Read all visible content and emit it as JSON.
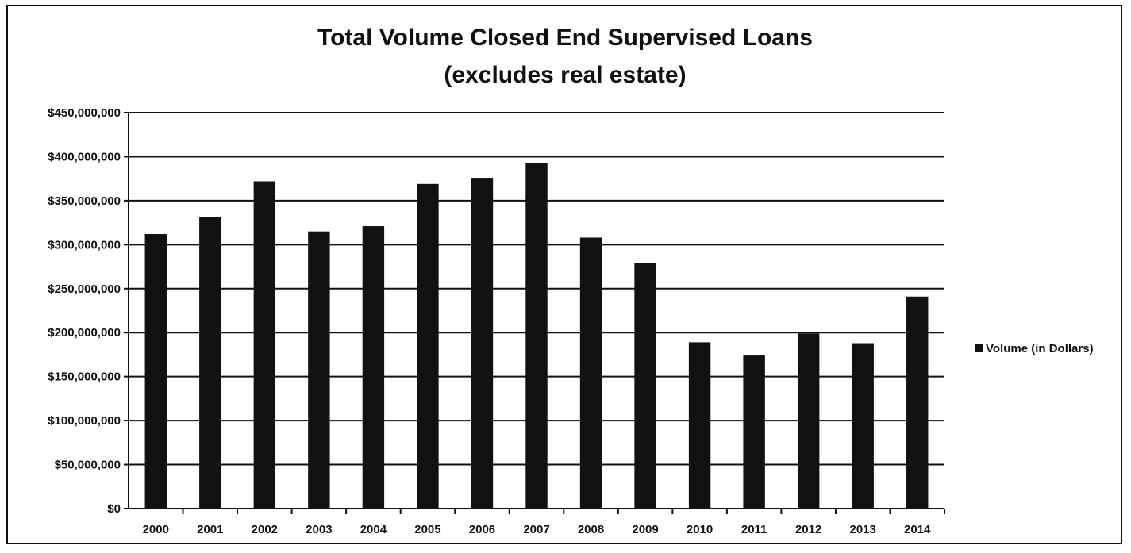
{
  "chart_data": {
    "type": "bar",
    "title": "Total Volume Closed End Supervised Loans",
    "subtitle": "(excludes real estate)",
    "xlabel": "",
    "ylabel": "",
    "categories": [
      "2000",
      "2001",
      "2002",
      "2003",
      "2004",
      "2005",
      "2006",
      "2007",
      "2008",
      "2009",
      "2010",
      "2011",
      "2012",
      "2013",
      "2014"
    ],
    "series": [
      {
        "name": "Volume (in Dollars)",
        "values": [
          312000000,
          331000000,
          372000000,
          315000000,
          321000000,
          369000000,
          376000000,
          393000000,
          308000000,
          279000000,
          189000000,
          174000000,
          199000000,
          188000000,
          241000000
        ]
      }
    ],
    "yticks": [
      "$0",
      "$50,000,000",
      "$100,000,000",
      "$150,000,000",
      "$200,000,000",
      "$250,000,000",
      "$300,000,000",
      "$350,000,000",
      "$400,000,000",
      "$450,000,000"
    ],
    "ylim": [
      0,
      450000000
    ],
    "grid": true,
    "legend_position": "right",
    "colors": {
      "bar": "#111111",
      "grid": "#111111",
      "text": "#111111"
    }
  }
}
